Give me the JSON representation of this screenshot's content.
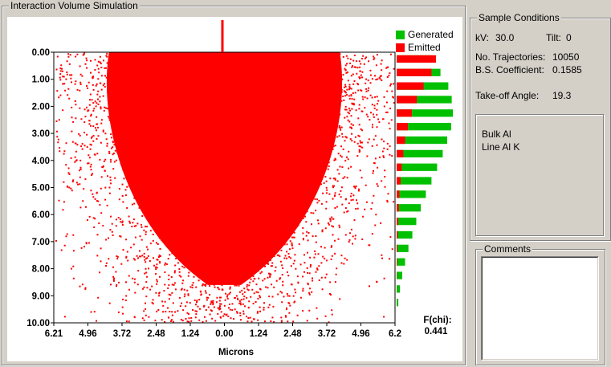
{
  "window": {
    "title": "Interaction Volume Simulation"
  },
  "plot": {
    "xlabel": "Microns",
    "y_ticks": [
      "0.00",
      "1.00",
      "2.00",
      "3.00",
      "4.00",
      "5.00",
      "6.00",
      "7.00",
      "8.00",
      "9.00",
      "10.00"
    ],
    "x_ticks": [
      "6.21",
      "4.96",
      "3.72",
      "2.48",
      "1.24",
      "0.00",
      "1.24",
      "2.48",
      "3.72",
      "4.96",
      "6.2"
    ],
    "fchi_label": "F(chi):",
    "fchi_value": "0.441",
    "legend": [
      {
        "label": "Generated",
        "color": "#00c000"
      },
      {
        "label": "Emitted",
        "color": "#ff0000"
      }
    ],
    "colors": {
      "points": "#ff0000",
      "beam": "#ff0000",
      "generated": "#00c000",
      "emitted": "#ff0000"
    }
  },
  "chart_data": {
    "type": "scatter",
    "xlabel": "Microns",
    "ylabel": "",
    "xlim": [
      -6.21,
      6.21
    ],
    "ylim": [
      0,
      10
    ],
    "y_inverted": true,
    "depth_profile": {
      "type": "bar",
      "orientation": "horizontal",
      "series": [
        {
          "name": "Generated",
          "depths": [
            0.25,
            0.75,
            1.25,
            1.75,
            2.25,
            2.75,
            3.25,
            3.75,
            4.25,
            4.75,
            5.25,
            5.75,
            6.25,
            6.75,
            7.25,
            7.75,
            8.25,
            8.75,
            9.25
          ],
          "values": [
            0.62,
            0.78,
            0.92,
            0.98,
            1.0,
            0.97,
            0.9,
            0.82,
            0.72,
            0.62,
            0.52,
            0.43,
            0.35,
            0.28,
            0.21,
            0.15,
            0.1,
            0.06,
            0.03
          ]
        },
        {
          "name": "Emitted",
          "depths": [
            0.25,
            0.75,
            1.25,
            1.75,
            2.25,
            2.75,
            3.25,
            3.75,
            4.25,
            4.75,
            5.25,
            5.75,
            6.25,
            6.75,
            7.25,
            7.75,
            8.25,
            8.75,
            9.25
          ],
          "values": [
            0.7,
            0.62,
            0.48,
            0.36,
            0.27,
            0.2,
            0.15,
            0.12,
            0.09,
            0.07,
            0.05,
            0.04,
            0.03,
            0.02,
            0.015,
            0.01,
            0.005,
            0.003,
            0.002
          ]
        }
      ]
    }
  },
  "conditions": {
    "title": "Sample Conditions",
    "kv_label": "kV:",
    "kv_value": "30.0",
    "tilt_label": "Tilt:",
    "tilt_value": "0",
    "traj_label": "No. Trajectories:",
    "traj_value": "10050",
    "bs_label": "B.S. Coefficient:",
    "bs_value": "0.1585",
    "takeoff_label": "Take-off Angle:",
    "takeoff_value": "19.3"
  },
  "material": {
    "line1": "Bulk Al",
    "line2": "Line Al K"
  },
  "comments": {
    "title": "Comments",
    "value": ""
  }
}
